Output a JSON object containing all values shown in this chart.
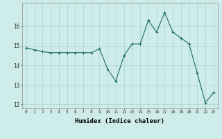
{
  "xlabel": "Humidex (Indice chaleur)",
  "ylabel": "",
  "background_color": "#ceecea",
  "grid_color": "#aed8d4",
  "line_color": "#1a6b5a",
  "marker": "+",
  "x_values": [
    0,
    1,
    2,
    3,
    4,
    5,
    6,
    7,
    8,
    9,
    10,
    11,
    12,
    13,
    14,
    15,
    16,
    17,
    18,
    19,
    20,
    21,
    22,
    23
  ],
  "y_values": [
    14.9,
    14.8,
    14.7,
    14.65,
    14.65,
    14.65,
    14.65,
    14.65,
    14.65,
    14.85,
    13.8,
    13.2,
    14.5,
    15.1,
    15.1,
    16.3,
    15.7,
    16.7,
    15.7,
    15.4,
    15.1,
    13.6,
    12.1,
    12.6
  ],
  "xlim": [
    -0.5,
    23.5
  ],
  "ylim": [
    11.8,
    17.2
  ],
  "yticks": [
    12,
    13,
    14,
    15,
    16
  ],
  "xticks": [
    0,
    1,
    2,
    3,
    4,
    5,
    6,
    7,
    8,
    9,
    10,
    11,
    12,
    13,
    14,
    15,
    16,
    17,
    18,
    19,
    20,
    21,
    22,
    23
  ],
  "markersize": 3,
  "linewidth": 0.8,
  "markeredgewidth": 0.8
}
